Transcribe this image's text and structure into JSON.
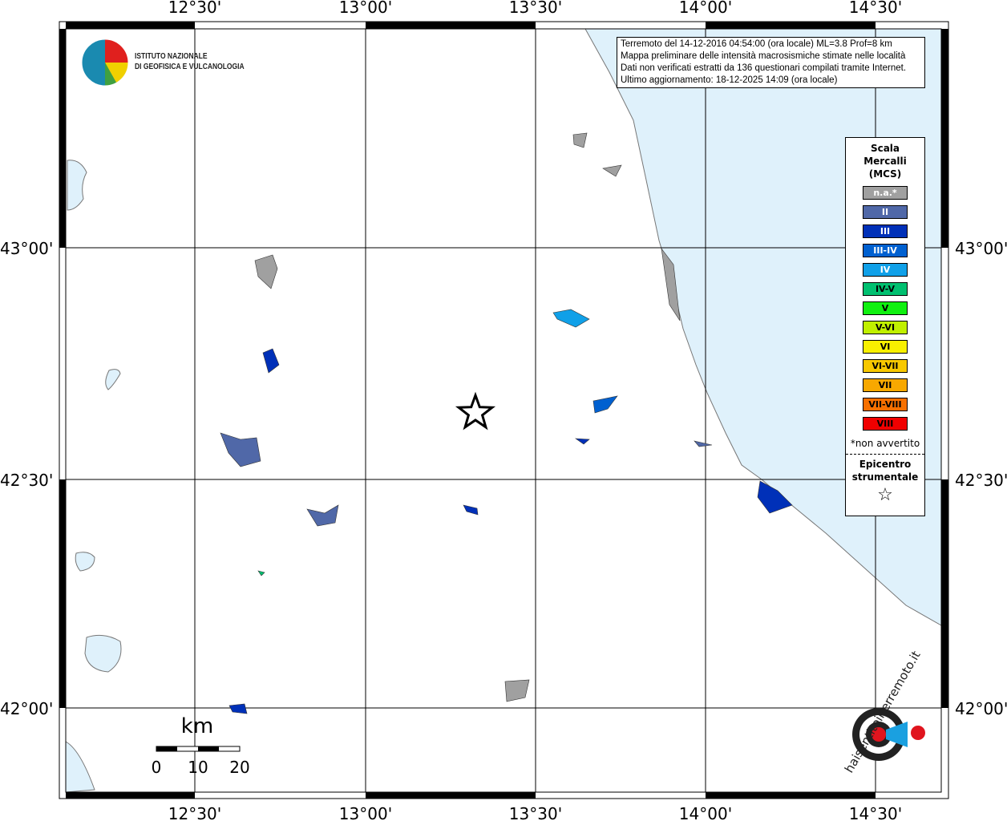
{
  "header": {
    "logo_text": [
      "ISTITUTO NAZIONALE",
      "DI GEOFISICA E VULCANOLOGIA"
    ]
  },
  "info": {
    "lines": [
      "Terremoto del 14-12-2016 04:54:00 (ora locale) ML=3.8 Prof=8 km",
      "Mappa preliminare delle intensità macrosismiche stimate nelle località",
      "Dati non verificati estratti da 136 questionari compilati tramite Internet.",
      "Ultimo aggiornamento: 18-12-2025 14:09 (ora locale)"
    ]
  },
  "axes": {
    "lon_labels": [
      "12°30'",
      "13°00'",
      "13°30'",
      "14°00'",
      "14°30'"
    ],
    "lat_labels": [
      "43°00'",
      "42°30'",
      "42°00'"
    ]
  },
  "scale_bar": {
    "unit": "km",
    "ticks": [
      "0",
      "10",
      "20"
    ]
  },
  "legend": {
    "title": [
      "Scala",
      "Mercalli",
      "(MCS)"
    ],
    "items": [
      {
        "label": "n.a.*",
        "color": "#a0a0a0",
        "text": "#fff"
      },
      {
        "label": "II",
        "color": "#5068a8",
        "text": "#fff"
      },
      {
        "label": "III",
        "color": "#0030b8",
        "text": "#fff"
      },
      {
        "label": "III-IV",
        "color": "#0060d0",
        "text": "#fff"
      },
      {
        "label": "IV",
        "color": "#10a0e8",
        "text": "#fff"
      },
      {
        "label": "IV-V",
        "color": "#00c070",
        "text": "#000"
      },
      {
        "label": "V",
        "color": "#10f010",
        "text": "#000"
      },
      {
        "label": "V-VI",
        "color": "#c0f000",
        "text": "#000"
      },
      {
        "label": "VI",
        "color": "#f8f000",
        "text": "#000"
      },
      {
        "label": "VI-VII",
        "color": "#f8c800",
        "text": "#000"
      },
      {
        "label": "VII",
        "color": "#f8a800",
        "text": "#000"
      },
      {
        "label": "VII-VIII",
        "color": "#f87000",
        "text": "#000"
      },
      {
        "label": "VIII",
        "color": "#f00000",
        "text": "#000"
      }
    ],
    "note": "*non avvertito",
    "epicenter_label": [
      "Epicentro",
      "strumentale"
    ]
  },
  "watermark": {
    "text": "haisentitoilterremoto.it",
    "url": "www."
  },
  "colors": {
    "sea": "#dff1fb"
  }
}
